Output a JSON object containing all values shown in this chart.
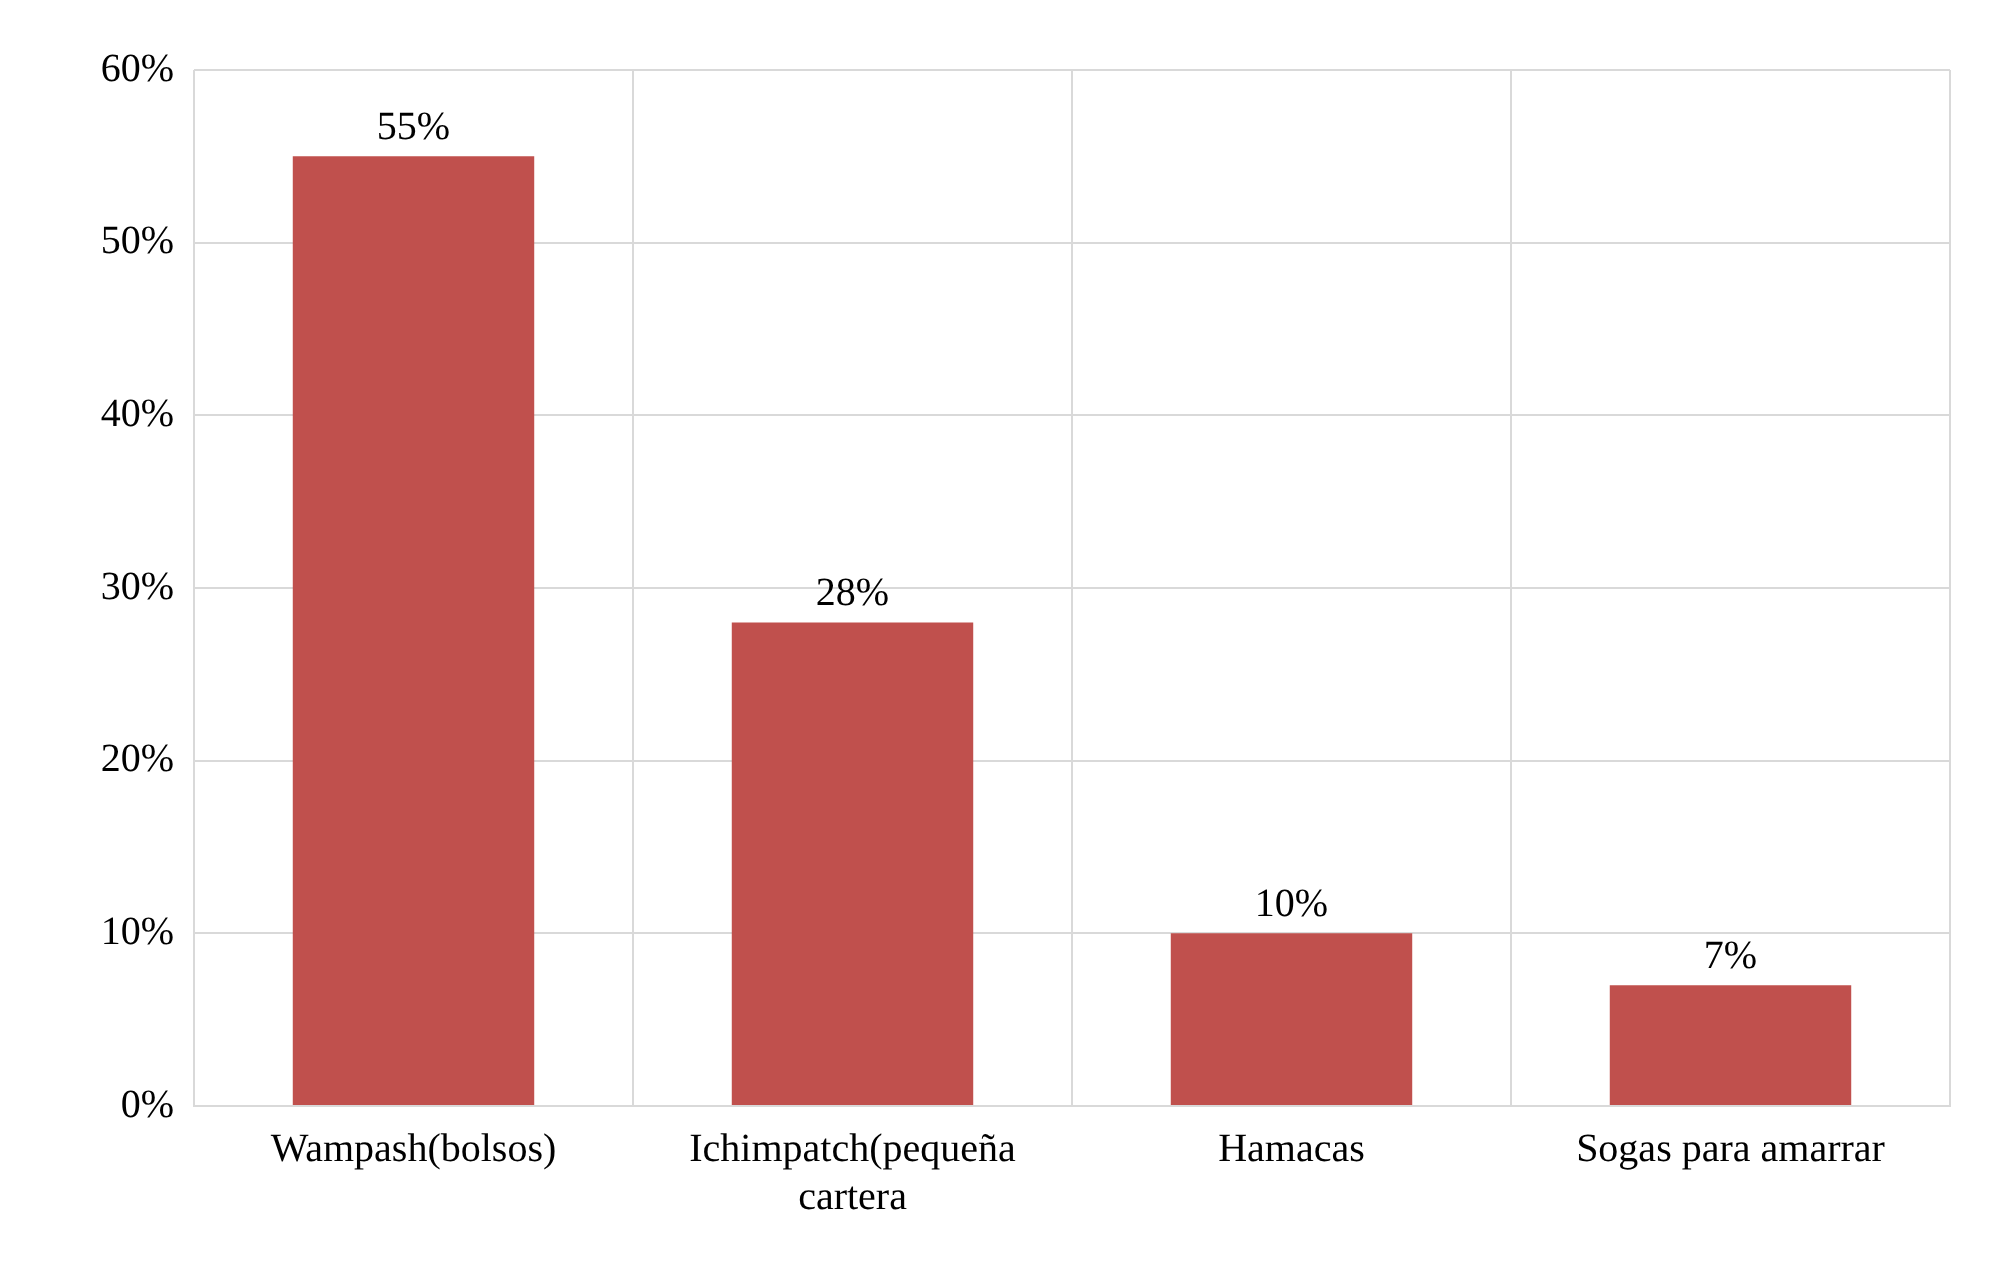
{
  "chart_data": {
    "type": "bar",
    "categories": [
      "Wampash(bolsos)",
      "Ichimpatch(pequeña cartera",
      "Hamacas",
      "Sogas para amarrar"
    ],
    "values": [
      55,
      28,
      10,
      7
    ],
    "color": "#c0504d",
    "value_labels": [
      "55%",
      "28%",
      "10%",
      "7%"
    ],
    "ylim": [
      0,
      60
    ],
    "yticks": [
      {
        "value": 0,
        "label": "0%"
      },
      {
        "value": 10,
        "label": "10%"
      },
      {
        "value": 20,
        "label": "20%"
      },
      {
        "value": 30,
        "label": "30%"
      },
      {
        "value": 40,
        "label": "40%"
      },
      {
        "value": 50,
        "label": "50%"
      },
      {
        "value": 60,
        "label": "60%"
      }
    ],
    "grid": true
  }
}
